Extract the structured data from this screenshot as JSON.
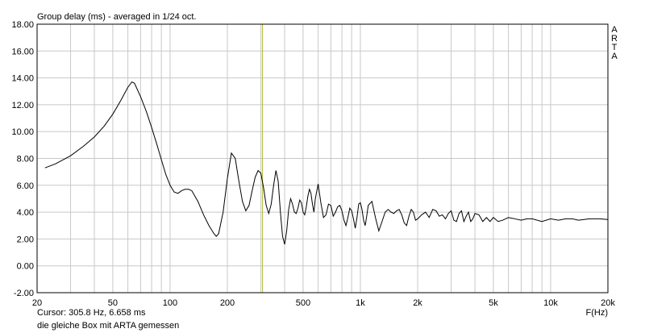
{
  "chart_data": {
    "type": "line",
    "title": "Group delay (ms) - averaged in 1/24 oct.",
    "brand": "ARTA",
    "xlabel": "F(Hz)",
    "ylabel": "",
    "x_scale": "log",
    "xlim": [
      20,
      20000
    ],
    "ylim": [
      -2,
      18
    ],
    "grid": true,
    "x_tick_labels": [
      {
        "value": 20,
        "label": "20"
      },
      {
        "value": 50,
        "label": "50"
      },
      {
        "value": 100,
        "label": "100"
      },
      {
        "value": 200,
        "label": "200"
      },
      {
        "value": 500,
        "label": "500"
      },
      {
        "value": 1000,
        "label": "1k"
      },
      {
        "value": 2000,
        "label": "2k"
      },
      {
        "value": 5000,
        "label": "5k"
      },
      {
        "value": 10000,
        "label": "10k"
      },
      {
        "value": 20000,
        "label": "20k"
      }
    ],
    "y_tick_labels": [
      "18.00",
      "16.00",
      "14.00",
      "12.00",
      "10.00",
      "8.00",
      "6.00",
      "4.00",
      "2.00",
      "0.00",
      "-2.00"
    ],
    "cursor": {
      "x": 305.8,
      "y": 6.658,
      "label": "Cursor: 305.8 Hz, 6.658 ms"
    },
    "note": "die gleiche Box mit ARTA gemessen",
    "colors": {
      "curve": "#000000",
      "cursor": "#c8c800",
      "grid": "#c8c8c8",
      "background": "#ffffff"
    },
    "series": [
      {
        "x": [
          22,
          25,
          30,
          35,
          40,
          45,
          50,
          55,
          60,
          63,
          65,
          70,
          75,
          80,
          85,
          90,
          95,
          100,
          105,
          110,
          115,
          120,
          125,
          130,
          140,
          150,
          160,
          170,
          175,
          180,
          190,
          200,
          210,
          220,
          230,
          240,
          250,
          260,
          270,
          280,
          290,
          300,
          310,
          320,
          330,
          340,
          350,
          360,
          370,
          380,
          390,
          400,
          410,
          420,
          430,
          440,
          450,
          460,
          470,
          480,
          490,
          500,
          510,
          520,
          530,
          540,
          550,
          560,
          570,
          580,
          600,
          620,
          640,
          660,
          680,
          700,
          720,
          740,
          760,
          780,
          800,
          820,
          840,
          860,
          880,
          900,
          920,
          940,
          960,
          980,
          1000,
          1020,
          1040,
          1060,
          1080,
          1100,
          1150,
          1200,
          1250,
          1300,
          1350,
          1400,
          1450,
          1500,
          1550,
          1600,
          1650,
          1700,
          1750,
          1800,
          1850,
          1900,
          1950,
          2000,
          2100,
          2200,
          2300,
          2400,
          2500,
          2600,
          2700,
          2800,
          2900,
          3000,
          3100,
          3200,
          3300,
          3400,
          3500,
          3600,
          3700,
          3800,
          3900,
          4000,
          4200,
          4400,
          4600,
          4800,
          5000,
          5300,
          5600,
          6000,
          6500,
          7000,
          7500,
          8000,
          9000,
          10000,
          11000,
          12000,
          13000,
          14000,
          16000,
          18000,
          20000
        ],
        "y": [
          7.3,
          7.6,
          8.2,
          8.9,
          9.6,
          10.4,
          11.3,
          12.3,
          13.3,
          13.7,
          13.6,
          12.6,
          11.5,
          10.3,
          9.1,
          7.9,
          6.8,
          6.0,
          5.5,
          5.4,
          5.6,
          5.7,
          5.7,
          5.6,
          4.8,
          3.8,
          3.0,
          2.4,
          2.2,
          2.4,
          4.0,
          6.5,
          8.4,
          8.0,
          6.3,
          4.8,
          4.1,
          4.5,
          5.6,
          6.6,
          7.1,
          6.9,
          5.8,
          4.5,
          3.9,
          4.6,
          6.0,
          7.1,
          6.3,
          4.0,
          2.2,
          1.6,
          2.6,
          4.2,
          5.0,
          4.6,
          4.0,
          3.9,
          4.3,
          4.9,
          4.7,
          4.0,
          3.8,
          4.4,
          5.2,
          5.7,
          5.4,
          4.6,
          4.0,
          5.0,
          6.1,
          4.7,
          3.6,
          3.8,
          4.6,
          4.5,
          3.7,
          4.0,
          4.4,
          4.5,
          4.1,
          3.4,
          3.0,
          3.6,
          4.3,
          4.1,
          3.5,
          2.8,
          3.6,
          4.6,
          4.7,
          4.2,
          3.4,
          3.0,
          3.7,
          4.5,
          4.8,
          3.6,
          2.6,
          3.3,
          4.0,
          4.2,
          4.0,
          3.9,
          4.1,
          4.2,
          3.8,
          3.2,
          3.0,
          3.7,
          4.2,
          4.0,
          3.4,
          3.5,
          3.8,
          4.0,
          3.6,
          4.2,
          4.1,
          3.7,
          3.8,
          3.5,
          3.9,
          4.1,
          3.4,
          3.3,
          3.9,
          4.1,
          3.3,
          3.7,
          4.0,
          3.3,
          3.5,
          3.9,
          3.8,
          3.3,
          3.6,
          3.3,
          3.6,
          3.3,
          3.4,
          3.6,
          3.5,
          3.4,
          3.5,
          3.5,
          3.3,
          3.5,
          3.4,
          3.5,
          3.5,
          3.4,
          3.5,
          3.5,
          3.45
        ]
      }
    ]
  }
}
